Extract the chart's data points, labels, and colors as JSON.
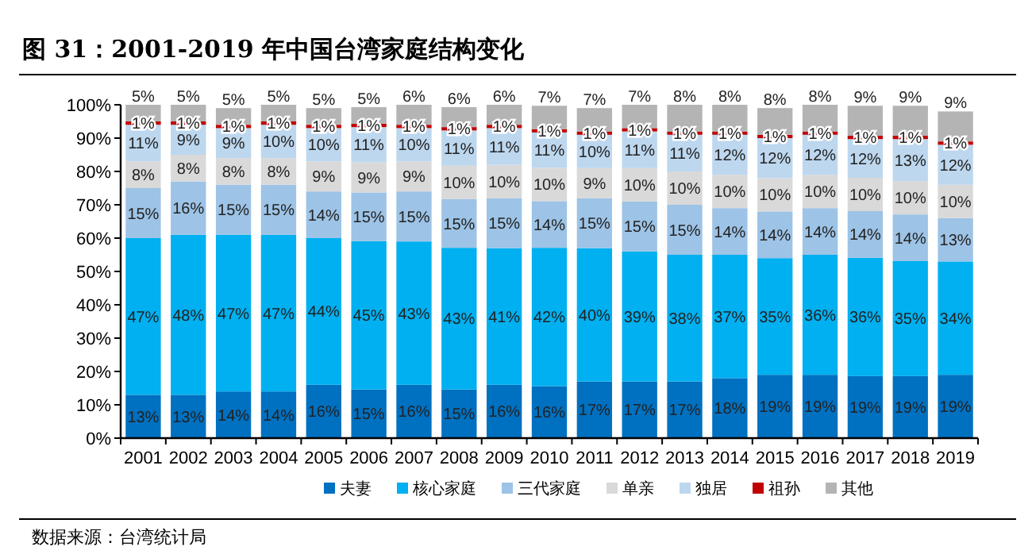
{
  "chart_data": {
    "type": "bar",
    "stacked": true,
    "title": "图 31：2001-2019 年中国台湾家庭结构变化",
    "annotations": [
      "数据来源：台湾统计局"
    ],
    "categories": [
      "2001",
      "2002",
      "2003",
      "2004",
      "2005",
      "2006",
      "2007",
      "2008",
      "2009",
      "2010",
      "2011",
      "2012",
      "2013",
      "2014",
      "2015",
      "2016",
      "2017",
      "2018",
      "2019"
    ],
    "ylim": [
      0,
      100
    ],
    "yticks": [
      {
        "value": 0,
        "label": "0%"
      },
      {
        "value": 10,
        "label": "10%"
      },
      {
        "value": 20,
        "label": "20%"
      },
      {
        "value": 30,
        "label": "30%"
      },
      {
        "value": 40,
        "label": "40%"
      },
      {
        "value": 50,
        "label": "50%"
      },
      {
        "value": 60,
        "label": "60%"
      },
      {
        "value": 70,
        "label": "70%"
      },
      {
        "value": 80,
        "label": "80%"
      },
      {
        "value": 90,
        "label": "90%"
      },
      {
        "value": 100,
        "label": "100%"
      }
    ],
    "legend": "bottom",
    "grid": false,
    "series": [
      {
        "name": "夫妻",
        "color": "#0070c0",
        "values": [
          13,
          13,
          14,
          14,
          16,
          14.6,
          16,
          14.6,
          16,
          15.6,
          17,
          17,
          17,
          18,
          19,
          19,
          18.6,
          18.6,
          19
        ],
        "value_labels": [
          "13%",
          "13%",
          "14%",
          "14%",
          "16%",
          "15%",
          "16%",
          "15%",
          "16%",
          "16%",
          "17%",
          "17%",
          "17%",
          "18%",
          "19%",
          "19%",
          "19%",
          "19%",
          "19%"
        ]
      },
      {
        "name": "核心家庭",
        "color": "#00b0f0",
        "values": [
          47,
          48,
          47,
          47,
          44,
          44.5,
          43,
          42.5,
          41,
          41.5,
          40,
          39,
          38,
          37,
          35,
          36,
          35.5,
          34.5,
          34
        ],
        "value_labels": [
          "47%",
          "48%",
          "47%",
          "47%",
          "44%",
          "45%",
          "43%",
          "43%",
          "41%",
          "42%",
          "40%",
          "39%",
          "38%",
          "37%",
          "35%",
          "36%",
          "36%",
          "35%",
          "34%"
        ]
      },
      {
        "name": "三代家庭",
        "color": "#9dc3e6",
        "values": [
          15,
          16,
          15,
          15,
          14,
          14.6,
          15,
          14.6,
          15,
          14,
          15,
          15,
          15,
          14,
          14,
          14,
          14,
          14,
          13
        ],
        "value_labels": [
          "15%",
          "16%",
          "15%",
          "15%",
          "14%",
          "15%",
          "15%",
          "15%",
          "15%",
          "14%",
          "15%",
          "15%",
          "15%",
          "14%",
          "14%",
          "14%",
          "14%",
          "14%",
          "13%"
        ]
      },
      {
        "name": "单亲",
        "color": "#d9d9d9",
        "values": [
          8,
          8,
          8,
          8,
          9,
          9,
          9,
          10,
          10,
          10,
          9,
          10,
          10,
          10,
          10,
          10,
          10,
          10,
          10
        ],
        "value_labels": [
          "8%",
          "8%",
          "8%",
          "8%",
          "9%",
          "9%",
          "9%",
          "10%",
          "10%",
          "10%",
          "9%",
          "10%",
          "10%",
          "10%",
          "10%",
          "10%",
          "10%",
          "10%",
          "10%"
        ]
      },
      {
        "name": "独居",
        "color": "#bdd7ee",
        "values": [
          11,
          9,
          9,
          10,
          10,
          10.6,
          10,
          10.6,
          11,
          10.6,
          10,
          11,
          11,
          12,
          12,
          12,
          11.6,
          12.6,
          12
        ],
        "value_labels": [
          "11%",
          "9%",
          "9%",
          "10%",
          "10%",
          "11%",
          "10%",
          "11%",
          "11%",
          "11%",
          "10%",
          "11%",
          "11%",
          "12%",
          "12%",
          "12%",
          "12%",
          "13%",
          "12%"
        ]
      },
      {
        "name": "祖孙",
        "color": "#c00000",
        "values": [
          1,
          1,
          1,
          1,
          1,
          1,
          1,
          1,
          1,
          1,
          1,
          1,
          1,
          1,
          1,
          1,
          1,
          1,
          1
        ],
        "value_labels": [
          "1%",
          "1%",
          "1%",
          "1%",
          "1%",
          "1%",
          "1%",
          "1%",
          "1%",
          "1%",
          "1%",
          "1%",
          "1%",
          "1%",
          "1%",
          "1%",
          "1%",
          "1%",
          "1%"
        ]
      },
      {
        "name": "其他",
        "color": "#b4b4b4",
        "values": [
          5,
          5,
          5,
          5,
          5,
          5,
          6,
          6,
          6,
          7,
          7,
          7,
          8,
          8,
          8,
          8,
          9,
          9,
          9
        ],
        "value_labels": [
          "5%",
          "5%",
          "5%",
          "5%",
          "5%",
          "5%",
          "6%",
          "6%",
          "6%",
          "7%",
          "7%",
          "7%",
          "8%",
          "8%",
          "8%",
          "8%",
          "9%",
          "9%",
          "9%"
        ]
      }
    ]
  }
}
